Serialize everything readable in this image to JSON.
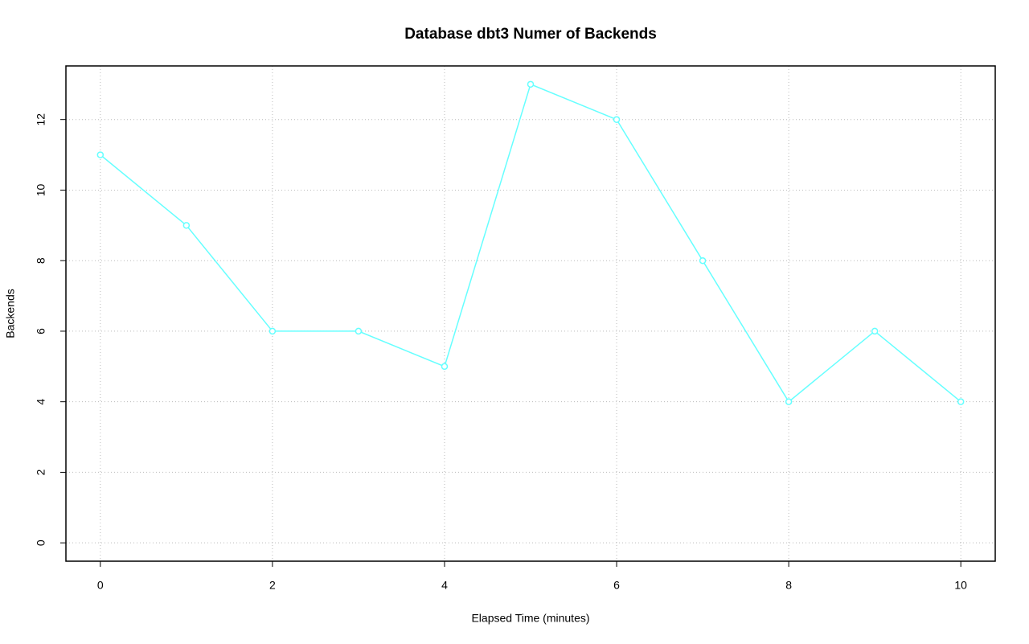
{
  "chart_data": {
    "type": "line",
    "title": "Database dbt3 Numer of Backends",
    "x_label": "Elapsed Time (minutes)",
    "y_label": "Backends",
    "x": [
      0,
      1,
      2,
      3,
      4,
      5,
      6,
      7,
      8,
      9,
      10
    ],
    "values": [
      11,
      9,
      6,
      6,
      5,
      13,
      12,
      8,
      4,
      6,
      4
    ],
    "color": "#66ffff",
    "xlim": [
      -0.4,
      10.4
    ],
    "ylim": [
      -0.52,
      13.52
    ],
    "xticks": [
      0,
      2,
      4,
      6,
      8,
      10
    ],
    "yticks": [
      0,
      2,
      4,
      6,
      8,
      10,
      12
    ],
    "grid": true
  }
}
